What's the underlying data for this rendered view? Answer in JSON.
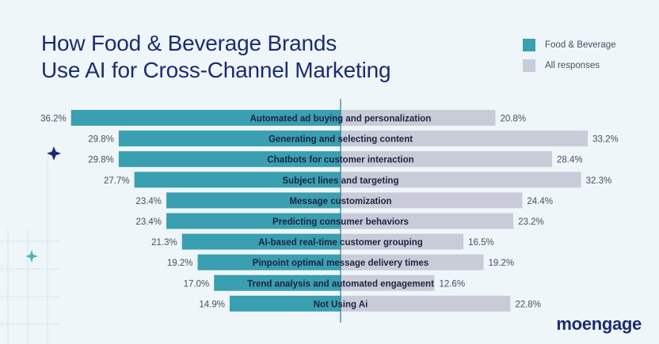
{
  "header": {
    "title_line1": "How Food & Beverage Brands",
    "title_line2": "Use AI for Cross-Channel Marketing"
  },
  "legend": [
    {
      "label": "Food & Beverage",
      "color": "#3a9fb0"
    },
    {
      "label": "All responses",
      "color": "#c9ccd8"
    }
  ],
  "logo": {
    "text": "moengage"
  },
  "colors": {
    "background": "#eef6fa",
    "title": "#1d2c70",
    "decor_star": "#1d2c70",
    "decor_star_2": "#49b6bf"
  },
  "chart_data": {
    "type": "bar",
    "orientation": "diverging-horizontal",
    "categories": [
      "Automated ad buying and personalization",
      "Generating and selecting content",
      "Chatbots for customer interaction",
      "Subject lines and targeting",
      "Message customization",
      "Predicting consumer behaviors",
      "AI-based real-time customer grouping",
      "Pinpoint optimal message delivery times",
      "Trend analysis and automated engagement",
      "Not Using Ai"
    ],
    "series": [
      {
        "name": "Food & Beverage",
        "side": "left",
        "color": "#3a9fb0",
        "values": [
          36.2,
          29.8,
          29.8,
          27.7,
          23.4,
          23.4,
          21.3,
          19.2,
          17.0,
          14.9
        ],
        "value_labels": [
          "36.2%",
          "29.8%",
          "29.8%",
          "27.7%",
          "23.4%",
          "23.4%",
          "21.3%",
          "19.2%",
          "17.0%",
          "14.9%"
        ]
      },
      {
        "name": "All responses",
        "side": "right",
        "color": "#c9ccd8",
        "values": [
          20.8,
          33.2,
          28.4,
          32.3,
          24.4,
          23.2,
          16.5,
          19.2,
          12.6,
          22.8
        ],
        "value_labels": [
          "20.8%",
          "33.2%",
          "28.4%",
          "32.3%",
          "24.4%",
          "23.2%",
          "16.5%",
          "19.2%",
          "12.6%",
          "22.8%"
        ]
      }
    ],
    "grid": false
  }
}
